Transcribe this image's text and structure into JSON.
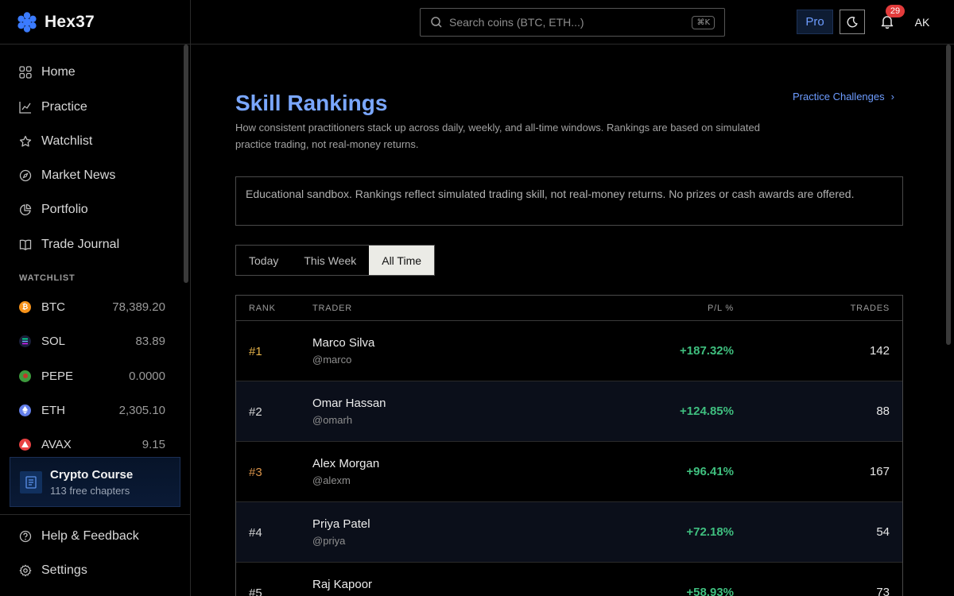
{
  "app": {
    "name": "Hex37"
  },
  "search": {
    "placeholder": "Search coins (BTC, ETH...)",
    "shortcut": "⌘K"
  },
  "header": {
    "pro_label": "Pro",
    "notification_count": "29",
    "avatar_initials": "AK"
  },
  "sidebar": {
    "nav": [
      {
        "label": "Home",
        "icon": "grid-icon"
      },
      {
        "label": "Practice",
        "icon": "chart-line-icon"
      },
      {
        "label": "Watchlist",
        "icon": "star-icon"
      },
      {
        "label": "Market News",
        "icon": "compass-icon"
      },
      {
        "label": "Portfolio",
        "icon": "pie-chart-icon"
      },
      {
        "label": "Trade Journal",
        "icon": "book-icon"
      }
    ],
    "watchlist_heading": "WATCHLIST",
    "watchlist": [
      {
        "symbol": "BTC",
        "price": "78,389.20",
        "color": "#f7931a"
      },
      {
        "symbol": "SOL",
        "price": "83.89",
        "color": "#1a1f3a"
      },
      {
        "symbol": "PEPE",
        "price": "0.0000",
        "color": "#3d9a3d"
      },
      {
        "symbol": "ETH",
        "price": "2,305.10",
        "color": "#627eea"
      },
      {
        "symbol": "AVAX",
        "price": "9.15",
        "color": "#e84142"
      }
    ],
    "course": {
      "title": "Crypto Course",
      "subtitle": "113 free chapters"
    },
    "footer": [
      {
        "label": "Help & Feedback",
        "icon": "help-icon"
      },
      {
        "label": "Settings",
        "icon": "gear-icon"
      }
    ]
  },
  "page": {
    "title": "Skill Rankings",
    "description": "How consistent practitioners stack up across daily, weekly, and all-time windows. Rankings are based on simulated practice trading, not real-money returns.",
    "practice_link": "Practice Challenges",
    "notice": "Educational sandbox. Rankings reflect simulated trading skill, not real-money returns. No prizes or cash awards are offered.",
    "tabs": [
      {
        "label": "Today",
        "active": false
      },
      {
        "label": "This Week",
        "active": false
      },
      {
        "label": "All Time",
        "active": true
      }
    ]
  },
  "table": {
    "headers": {
      "rank": "RANK",
      "trader": "TRADER",
      "pl": "P/L %",
      "trades": "TRADES"
    },
    "rows": [
      {
        "rank": "#1",
        "name": "Marco Silva",
        "handle": "@marco",
        "pl": "+187.32%",
        "trades": "142"
      },
      {
        "rank": "#2",
        "name": "Omar Hassan",
        "handle": "@omarh",
        "pl": "+124.85%",
        "trades": "88"
      },
      {
        "rank": "#3",
        "name": "Alex Morgan",
        "handle": "@alexm",
        "pl": "+96.41%",
        "trades": "167"
      },
      {
        "rank": "#4",
        "name": "Priya Patel",
        "handle": "@priya",
        "pl": "+72.18%",
        "trades": "54"
      },
      {
        "rank": "#5",
        "name": "Raj Kapoor",
        "handle": "",
        "pl": "+58.93%",
        "trades": "73"
      }
    ]
  },
  "colors": {
    "accent": "#7aa7ff",
    "positive": "#3fbf7f",
    "gold": "#e6b34a",
    "bronze": "#d9934a",
    "badge": "#e23b3b"
  }
}
